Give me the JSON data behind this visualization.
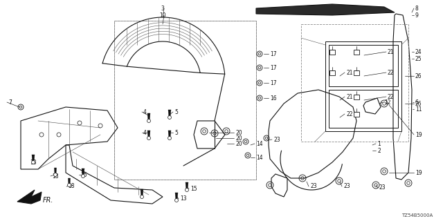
{
  "bg_color": "#ffffff",
  "diagram_code": "TZ54B5000A",
  "fig_w": 6.4,
  "fig_h": 3.2,
  "dpi": 100
}
